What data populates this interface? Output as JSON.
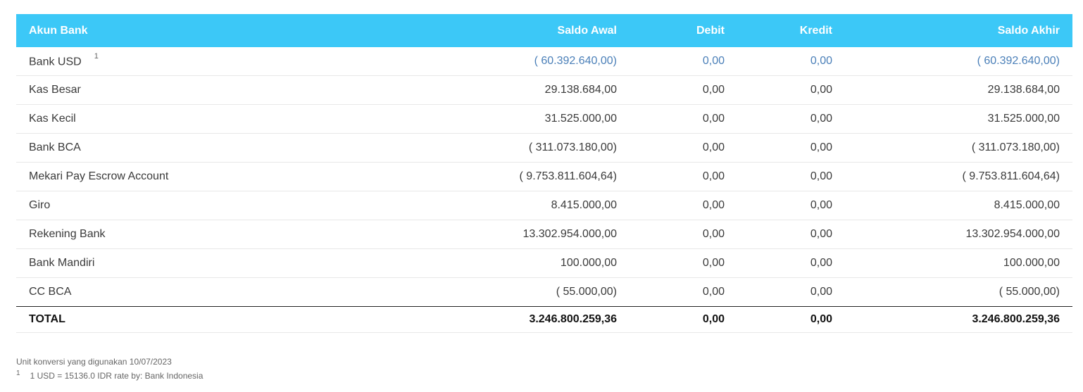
{
  "table": {
    "headers": {
      "account": "Akun Bank",
      "opening": "Saldo Awal",
      "debit": "Debit",
      "credit": "Kredit",
      "closing": "Saldo Akhir"
    },
    "rows": [
      {
        "account": "Bank USD",
        "footnote": "1",
        "opening": "( 60.392.640,00)",
        "debit": "0,00",
        "credit": "0,00",
        "closing": "( 60.392.640,00)"
      },
      {
        "account": "Kas Besar",
        "opening": "29.138.684,00",
        "debit": "0,00",
        "credit": "0,00",
        "closing": "29.138.684,00"
      },
      {
        "account": "Kas Kecil",
        "opening": "31.525.000,00",
        "debit": "0,00",
        "credit": "0,00",
        "closing": "31.525.000,00"
      },
      {
        "account": "Bank BCA",
        "opening": "( 311.073.180,00)",
        "debit": "0,00",
        "credit": "0,00",
        "closing": "( 311.073.180,00)"
      },
      {
        "account": "Mekari Pay Escrow Account",
        "opening": "( 9.753.811.604,64)",
        "debit": "0,00",
        "credit": "0,00",
        "closing": "( 9.753.811.604,64)"
      },
      {
        "account": "Giro",
        "opening": "8.415.000,00",
        "debit": "0,00",
        "credit": "0,00",
        "closing": "8.415.000,00"
      },
      {
        "account": "Rekening Bank",
        "opening": "13.302.954.000,00",
        "debit": "0,00",
        "credit": "0,00",
        "closing": "13.302.954.000,00"
      },
      {
        "account": "Bank Mandiri",
        "opening": "100.000,00",
        "debit": "0,00",
        "credit": "0,00",
        "closing": "100.000,00"
      },
      {
        "account": "CC BCA",
        "opening": "( 55.000,00)",
        "debit": "0,00",
        "credit": "0,00",
        "closing": "( 55.000,00)"
      }
    ],
    "total": {
      "label": "TOTAL",
      "opening": "3.246.800.259,36",
      "debit": "0,00",
      "credit": "0,00",
      "closing": "3.246.800.259,36"
    }
  },
  "notes": {
    "conversion_date_text": "Unit konversi yang digunakan 10/07/2023",
    "footnote_marker": "1",
    "footnote_text": "1 USD = 15136.0 IDR rate by: Bank Indonesia"
  },
  "colors": {
    "header_bg": "#3cc8f7",
    "link_value": "#4a7fb8"
  }
}
